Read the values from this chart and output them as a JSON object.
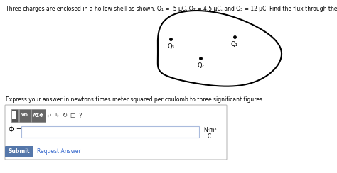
{
  "title_text": "Three charges are enclosed in a hollow shell as shown. Q₁ = -5 μC, Q₂ = 4.5 μC, and Q₃ = 12 μC. Find the flux through the surface.",
  "express_text": "Express your answer in newtons times meter squared per coulomb to three significant figures.",
  "phi_symbol": "Φ",
  "units_num": "N·m²",
  "units_denom": "C",
  "submit_text": "Submit",
  "request_text": "Request Answer",
  "q1_label": "Q₁",
  "q2_label": "Q₂",
  "q3_label": "Q₃",
  "background_color": "#ffffff",
  "submit_color": "#5577aa",
  "toolbar_dark": "#666666",
  "input_border": "#aabbdd"
}
